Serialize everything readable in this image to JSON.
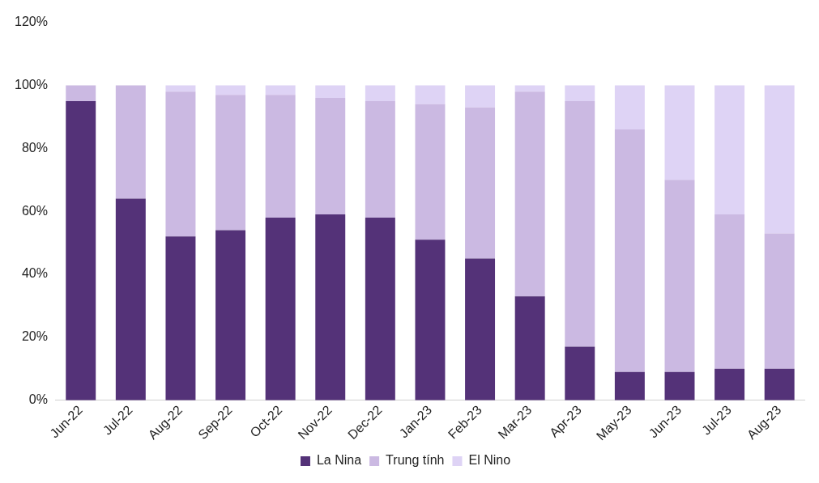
{
  "chart_data": {
    "type": "bar",
    "stacked": true,
    "categories": [
      "Jun-22",
      "Jul-22",
      "Aug-22",
      "Sep-22",
      "Oct-22",
      "Nov-22",
      "Dec-22",
      "Jan-23",
      "Feb-23",
      "Mar-23",
      "Apr-23",
      "May-23",
      "Jun-23",
      "Jul-23",
      "Aug-23"
    ],
    "series": [
      {
        "name": "La Nina",
        "color": "#543278",
        "values": [
          95,
          64,
          52,
          54,
          58,
          59,
          58,
          51,
          45,
          33,
          17,
          9,
          9,
          10,
          10
        ]
      },
      {
        "name": "Trung tính",
        "color": "#cbb9e2",
        "values": [
          5,
          36,
          46,
          43,
          39,
          37,
          37,
          43,
          48,
          65,
          78,
          77,
          61,
          49,
          43
        ]
      },
      {
        "name": "El Nino",
        "color": "#ded3f5",
        "values": [
          0,
          0,
          2,
          3,
          3,
          4,
          5,
          6,
          7,
          2,
          5,
          14,
          30,
          41,
          47
        ]
      }
    ],
    "ylim": [
      0,
      120
    ],
    "yticks": [
      {
        "value": 0,
        "label": "0%"
      },
      {
        "value": 20,
        "label": "20%"
      },
      {
        "value": 40,
        "label": "40%"
      },
      {
        "value": 60,
        "label": "60%"
      },
      {
        "value": 80,
        "label": "80%"
      },
      {
        "value": 100,
        "label": "100%"
      },
      {
        "value": 120,
        "label": "120%"
      }
    ],
    "grid": false,
    "legend": "bottom"
  }
}
